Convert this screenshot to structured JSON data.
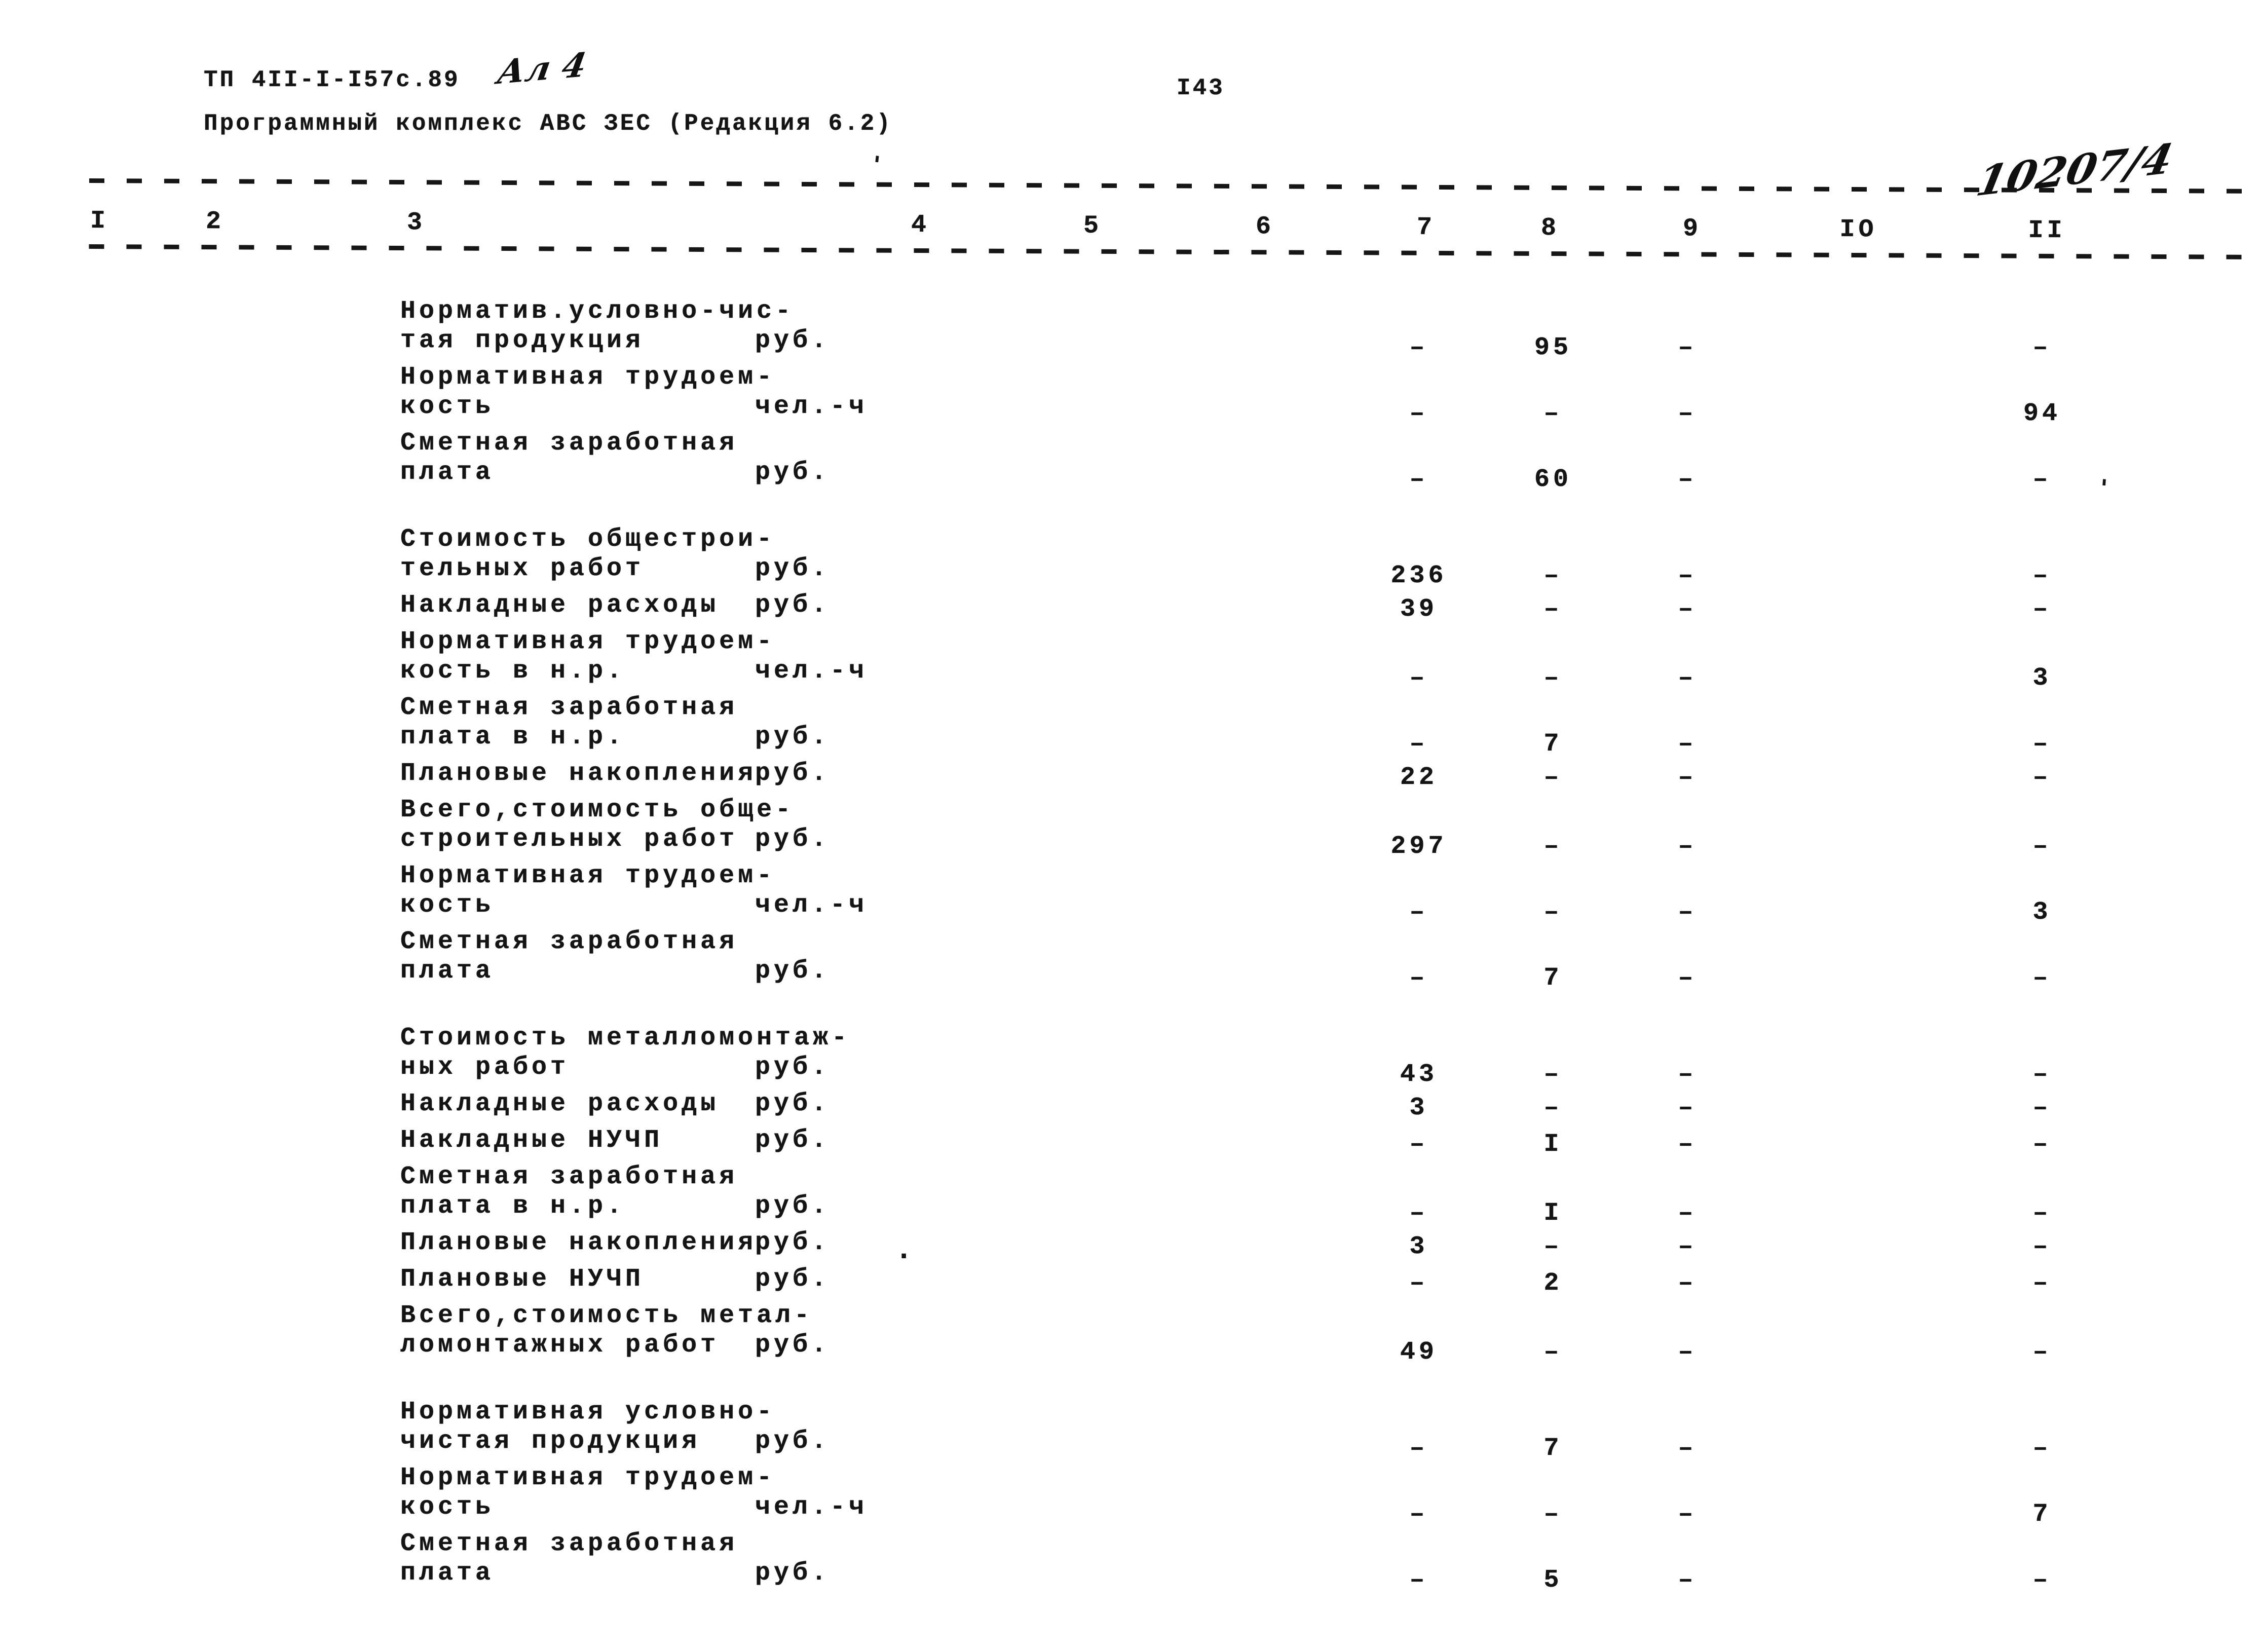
{
  "page": {
    "doc_code": "ТП 4II-I-I57с.89",
    "handwritten_sheet_note": "Ал 4",
    "program_line": "Программный комплекс АВС ЗЕС (Редакция 6.2)",
    "page_number": "I43",
    "handwritten_archive_number": "10207/4",
    "stray_marks": [
      "'",
      "'",
      "."
    ],
    "ink_color": "#141414",
    "paper_color": "#ffffff"
  },
  "table": {
    "column_numbers": [
      "I",
      "2",
      "3",
      "4",
      "5",
      "6",
      "7",
      "8",
      "9",
      "IO",
      "II"
    ],
    "value_column_keys": [
      "c7",
      "c8",
      "c9",
      "c11"
    ],
    "blocks": [
      {
        "rows": [
          {
            "label_lines": [
              "Норматив.условно-чис-",
              "тая продукция"
            ],
            "unit": "руб.",
            "values": {
              "c7": "–",
              "c8": "95",
              "c9": "–",
              "c11": "–"
            }
          },
          {
            "label_lines": [
              "Нормативная трудоем-",
              "кость"
            ],
            "unit": "чел.-ч",
            "values": {
              "c7": "–",
              "c8": "–",
              "c9": "–",
              "c11": "94"
            }
          },
          {
            "label_lines": [
              "Сметная заработная",
              "плата"
            ],
            "unit": "руб.",
            "values": {
              "c7": "–",
              "c8": "60",
              "c9": "–",
              "c11": "–"
            }
          }
        ]
      },
      {
        "rows": [
          {
            "label_lines": [
              "Стоимость общестрои-",
              "тельных работ"
            ],
            "unit": "руб.",
            "values": {
              "c7": "236",
              "c8": "–",
              "c9": "–",
              "c11": "–"
            }
          },
          {
            "label_lines": [
              "Накладные расходы"
            ],
            "unit": "руб.",
            "values": {
              "c7": "39",
              "c8": "–",
              "c9": "–",
              "c11": "–"
            }
          },
          {
            "label_lines": [
              "Нормативная трудоем-",
              "кость в н.р."
            ],
            "unit": "чел.-ч",
            "values": {
              "c7": "–",
              "c8": "–",
              "c9": "–",
              "c11": "3"
            }
          },
          {
            "label_lines": [
              "Сметная заработная",
              "плата в н.р."
            ],
            "unit": "руб.",
            "values": {
              "c7": "–",
              "c8": "7",
              "c9": "–",
              "c11": "–"
            }
          },
          {
            "label_lines": [
              "Плановые накопления"
            ],
            "unit": "руб.",
            "values": {
              "c7": "22",
              "c8": "–",
              "c9": "–",
              "c11": "–"
            }
          },
          {
            "label_lines": [
              "Всего,стоимость обще-",
              "строительных работ"
            ],
            "unit": "руб.",
            "values": {
              "c7": "297",
              "c8": "–",
              "c9": "–",
              "c11": "–"
            }
          },
          {
            "label_lines": [
              "Нормативная трудоем-",
              "кость"
            ],
            "unit": "чел.-ч",
            "values": {
              "c7": "–",
              "c8": "–",
              "c9": "–",
              "c11": "3"
            }
          },
          {
            "label_lines": [
              "Сметная заработная",
              "плата"
            ],
            "unit": "руб.",
            "values": {
              "c7": "–",
              "c8": "7",
              "c9": "–",
              "c11": "–"
            }
          }
        ]
      },
      {
        "rows": [
          {
            "label_lines": [
              "Стоимость металломонтаж-",
              "ных работ"
            ],
            "unit": "руб.",
            "values": {
              "c7": "43",
              "c8": "–",
              "c9": "–",
              "c11": "–"
            }
          },
          {
            "label_lines": [
              "Накладные расходы"
            ],
            "unit": "руб.",
            "values": {
              "c7": "3",
              "c8": "–",
              "c9": "–",
              "c11": "–"
            }
          },
          {
            "label_lines": [
              "Накладные НУЧП"
            ],
            "unit": "руб.",
            "values": {
              "c7": "–",
              "c8": "I",
              "c9": "–",
              "c11": "–"
            }
          },
          {
            "label_lines": [
              "Сметная заработная",
              "плата в н.р."
            ],
            "unit": "руб.",
            "values": {
              "c7": "–",
              "c8": "I",
              "c9": "–",
              "c11": "–"
            }
          },
          {
            "label_lines": [
              "Плановые накопления"
            ],
            "unit": "руб.",
            "values": {
              "c7": "3",
              "c8": "–",
              "c9": "–",
              "c11": "–"
            }
          },
          {
            "label_lines": [
              "Плановые НУЧП"
            ],
            "unit": "руб.",
            "values": {
              "c7": "–",
              "c8": "2",
              "c9": "–",
              "c11": "–"
            }
          },
          {
            "label_lines": [
              "Всего,стоимость метал-",
              "ломонтажных работ"
            ],
            "unit": "руб.",
            "values": {
              "c7": "49",
              "c8": "–",
              "c9": "–",
              "c11": "–"
            }
          }
        ]
      },
      {
        "rows": [
          {
            "label_lines": [
              "Нормативная условно-",
              "чистая продукция"
            ],
            "unit": "руб.",
            "values": {
              "c7": "–",
              "c8": "7",
              "c9": "–",
              "c11": "–"
            }
          },
          {
            "label_lines": [
              "Нормативная трудоем-",
              "кость"
            ],
            "unit": "чел.-ч",
            "values": {
              "c7": "–",
              "c8": "–",
              "c9": "–",
              "c11": "7"
            }
          },
          {
            "label_lines": [
              "Сметная заработная",
              "плата"
            ],
            "unit": "руб.",
            "values": {
              "c7": "–",
              "c8": "5",
              "c9": "–",
              "c11": "–"
            }
          }
        ]
      }
    ]
  }
}
